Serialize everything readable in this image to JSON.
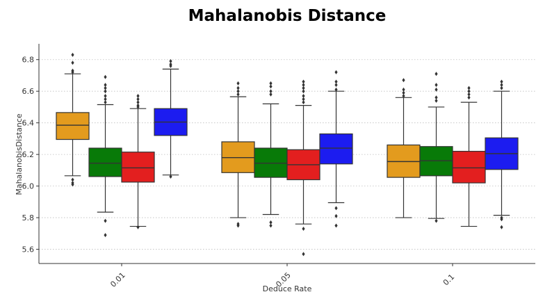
{
  "chart_data": {
    "type": "boxplot",
    "title": "Mahalanobis Distance",
    "xlabel": "Deduce Rate",
    "ylabel": "MahalanobisDistance",
    "ylim": [
      5.51,
      6.9
    ],
    "yticks": [
      5.6,
      5.8,
      6.0,
      6.2,
      6.4,
      6.6,
      6.8
    ],
    "ytick_labels": [
      "5.6",
      "5.8",
      "6.0",
      "6.2",
      "6.4",
      "6.6",
      "6.8"
    ],
    "grid": true,
    "series_colors": [
      "#e39b1e",
      "#087a08",
      "#e31f1f",
      "#1c1cf0"
    ],
    "categories": [
      "0.01",
      "0.05",
      "0.1"
    ],
    "groups": [
      {
        "category": "0.01",
        "boxes": [
          {
            "q1": 6.295,
            "median": 6.385,
            "q3": 6.465,
            "whisker_low": 6.065,
            "whisker_high": 6.71,
            "outliers": [
              6.83,
              6.78,
              6.73,
              6.72,
              6.04,
              6.02,
              6.01
            ]
          },
          {
            "q1": 6.06,
            "median": 6.145,
            "q3": 6.24,
            "whisker_low": 5.835,
            "whisker_high": 6.515,
            "outliers": [
              6.69,
              6.64,
              6.62,
              6.6,
              6.57,
              6.55,
              6.53,
              5.78,
              5.69
            ]
          },
          {
            "q1": 6.025,
            "median": 6.115,
            "q3": 6.215,
            "whisker_low": 5.745,
            "whisker_high": 6.49,
            "outliers": [
              6.57,
              6.55,
              6.53,
              6.51,
              6.5,
              5.74
            ]
          },
          {
            "q1": 6.32,
            "median": 6.405,
            "q3": 6.49,
            "whisker_low": 6.07,
            "whisker_high": 6.74,
            "outliers": [
              6.79,
              6.77,
              6.76,
              6.06
            ]
          }
        ]
      },
      {
        "category": "0.05",
        "boxes": [
          {
            "q1": 6.085,
            "median": 6.18,
            "q3": 6.28,
            "whisker_low": 5.8,
            "whisker_high": 6.565,
            "outliers": [
              6.65,
              6.62,
              6.6,
              6.58,
              5.76,
              5.75
            ]
          },
          {
            "q1": 6.055,
            "median": 6.145,
            "q3": 6.24,
            "whisker_low": 5.82,
            "whisker_high": 6.52,
            "outliers": [
              6.65,
              6.63,
              6.6,
              6.58,
              5.77,
              5.75
            ]
          },
          {
            "q1": 6.04,
            "median": 6.135,
            "q3": 6.23,
            "whisker_low": 5.76,
            "whisker_high": 6.51,
            "outliers": [
              6.66,
              6.64,
              6.62,
              6.6,
              6.57,
              6.55,
              6.53,
              5.73,
              5.57
            ]
          },
          {
            "q1": 6.14,
            "median": 6.24,
            "q3": 6.33,
            "whisker_low": 5.895,
            "whisker_high": 6.6,
            "outliers": [
              6.72,
              6.66,
              6.64,
              6.61,
              5.86,
              5.81,
              5.75
            ]
          }
        ]
      },
      {
        "category": "0.1",
        "boxes": [
          {
            "q1": 6.055,
            "median": 6.155,
            "q3": 6.26,
            "whisker_low": 5.8,
            "whisker_high": 6.56,
            "outliers": [
              6.67,
              6.61,
              6.59,
              6.57
            ]
          },
          {
            "q1": 6.065,
            "median": 6.16,
            "q3": 6.25,
            "whisker_low": 5.795,
            "whisker_high": 6.5,
            "outliers": [
              6.71,
              6.64,
              6.61,
              6.56,
              6.54,
              5.78
            ]
          },
          {
            "q1": 6.02,
            "median": 6.115,
            "q3": 6.22,
            "whisker_low": 5.745,
            "whisker_high": 6.53,
            "outliers": [
              6.62,
              6.6,
              6.58,
              6.56
            ]
          },
          {
            "q1": 6.105,
            "median": 6.205,
            "q3": 6.305,
            "whisker_low": 5.815,
            "whisker_high": 6.6,
            "outliers": [
              6.66,
              6.64,
              6.62,
              5.8,
              5.79,
              5.74
            ]
          }
        ]
      }
    ]
  }
}
